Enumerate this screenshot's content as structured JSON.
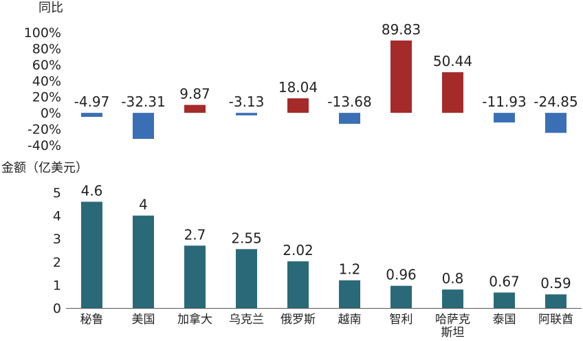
{
  "chart_data": [
    {
      "type": "bar",
      "ylabel": "同比",
      "categories": [
        "秘鲁",
        "美国",
        "加拿大",
        "乌克兰",
        "俄罗斯",
        "越南",
        "智利",
        "哈萨克斯坦",
        "泰国",
        "阿联酋"
      ],
      "values": [
        -4.97,
        -32.31,
        9.87,
        -3.13,
        18.04,
        -13.68,
        89.83,
        50.44,
        -11.93,
        -24.85
      ],
      "value_labels": [
        "-4.97",
        "-32.31",
        "9.87",
        "-3.13",
        "18.04",
        "-13.68",
        "89.83",
        "50.44",
        "-11.93",
        "-24.85"
      ],
      "ylim": [
        -40,
        100
      ],
      "yticks": [
        "100%",
        "80%",
        "60%",
        "40%",
        "20%",
        "0%",
        "-20%",
        "-40%"
      ],
      "ytick_values": [
        100,
        80,
        60,
        40,
        20,
        0,
        -20,
        -40
      ],
      "colors": {
        "positive": "#a52a2a",
        "negative": "#3a6fb5"
      },
      "grid": false
    },
    {
      "type": "bar",
      "ylabel": "金额（亿美元）",
      "categories": [
        "秘鲁",
        "美国",
        "加拿大",
        "乌克兰",
        "俄罗斯",
        "越南",
        "智利",
        "哈萨克斯坦",
        "泰国",
        "阿联酋"
      ],
      "category_lines": [
        [
          "秘鲁"
        ],
        [
          "美国"
        ],
        [
          "加拿大"
        ],
        [
          "乌克兰"
        ],
        [
          "俄罗斯"
        ],
        [
          "越南"
        ],
        [
          "智利"
        ],
        [
          "哈萨克",
          "斯坦"
        ],
        [
          "泰国"
        ],
        [
          "阿联酋"
        ]
      ],
      "values": [
        4.6,
        4,
        2.7,
        2.55,
        2.02,
        1.2,
        0.96,
        0.8,
        0.67,
        0.59
      ],
      "value_labels": [
        "4.6",
        "4",
        "2.7",
        "2.55",
        "2.02",
        "1.2",
        "0.96",
        "0.8",
        "0.67",
        "0.59"
      ],
      "ylim": [
        0,
        5
      ],
      "yticks": [
        "5",
        "4",
        "3",
        "2",
        "1",
        "0"
      ],
      "ytick_values": [
        5,
        4,
        3,
        2,
        1,
        0
      ],
      "colors": {
        "bar": "#2a6a78",
        "axis": "#555555"
      },
      "grid": false
    }
  ]
}
